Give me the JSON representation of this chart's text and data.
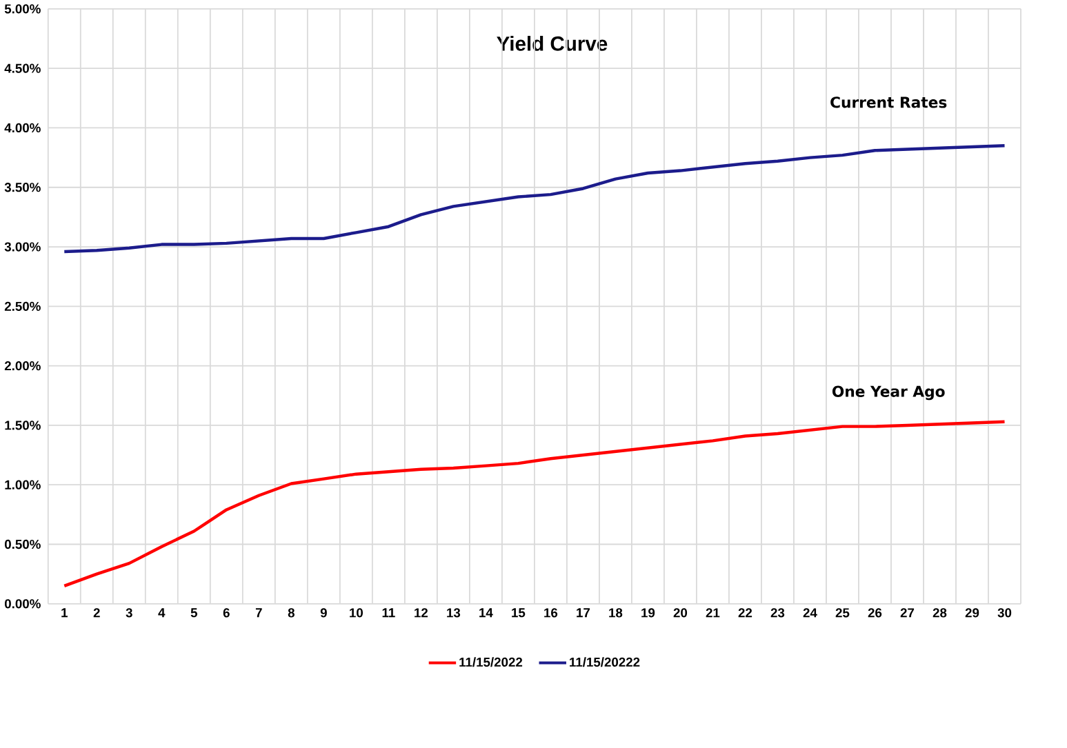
{
  "chart_data": {
    "type": "line",
    "title": "Yield Curve",
    "categories": [
      "1",
      "2",
      "3",
      "4",
      "5",
      "6",
      "7",
      "8",
      "9",
      "10",
      "11",
      "12",
      "13",
      "14",
      "15",
      "16",
      "17",
      "18",
      "19",
      "20",
      "21",
      "22",
      "23",
      "24",
      "25",
      "26",
      "27",
      "28",
      "29",
      "30"
    ],
    "series": [
      {
        "name": "11/15/2022",
        "color": "#ff0000",
        "values": [
          0.15,
          0.25,
          0.34,
          0.48,
          0.61,
          0.79,
          0.91,
          1.01,
          1.05,
          1.09,
          1.11,
          1.13,
          1.14,
          1.16,
          1.18,
          1.22,
          1.25,
          1.28,
          1.31,
          1.34,
          1.37,
          1.41,
          1.43,
          1.46,
          1.49,
          1.49,
          1.5,
          1.51,
          1.52,
          1.53
        ]
      },
      {
        "name": "11/15/20222",
        "color": "#1c1c8c",
        "values": [
          2.96,
          2.97,
          2.99,
          3.02,
          3.02,
          3.03,
          3.05,
          3.07,
          3.07,
          3.12,
          3.17,
          3.27,
          3.34,
          3.38,
          3.42,
          3.44,
          3.49,
          3.57,
          3.62,
          3.64,
          3.67,
          3.7,
          3.72,
          3.75,
          3.77,
          3.81,
          3.82,
          3.83,
          3.84,
          3.85
        ]
      }
    ],
    "ylim": [
      0,
      5
    ],
    "yticks": [
      {
        "value": 0,
        "label": "0.00%"
      },
      {
        "value": 0.5,
        "label": "0.50%"
      },
      {
        "value": 1,
        "label": "1.00%"
      },
      {
        "value": 1.5,
        "label": "1.50%"
      },
      {
        "value": 2,
        "label": "2.00%"
      },
      {
        "value": 2.5,
        "label": "2.50%"
      },
      {
        "value": 3,
        "label": "3.00%"
      },
      {
        "value": 3.5,
        "label": "3.50%"
      },
      {
        "value": 4,
        "label": "4.00%"
      },
      {
        "value": 4.5,
        "label": "4.50%"
      },
      {
        "value": 5,
        "label": "5.00%"
      }
    ],
    "annotations": [
      "Current Rates",
      "One Year Ago"
    ],
    "grid": true,
    "legend": "bottom",
    "marker": "none",
    "line_style": "solid"
  }
}
